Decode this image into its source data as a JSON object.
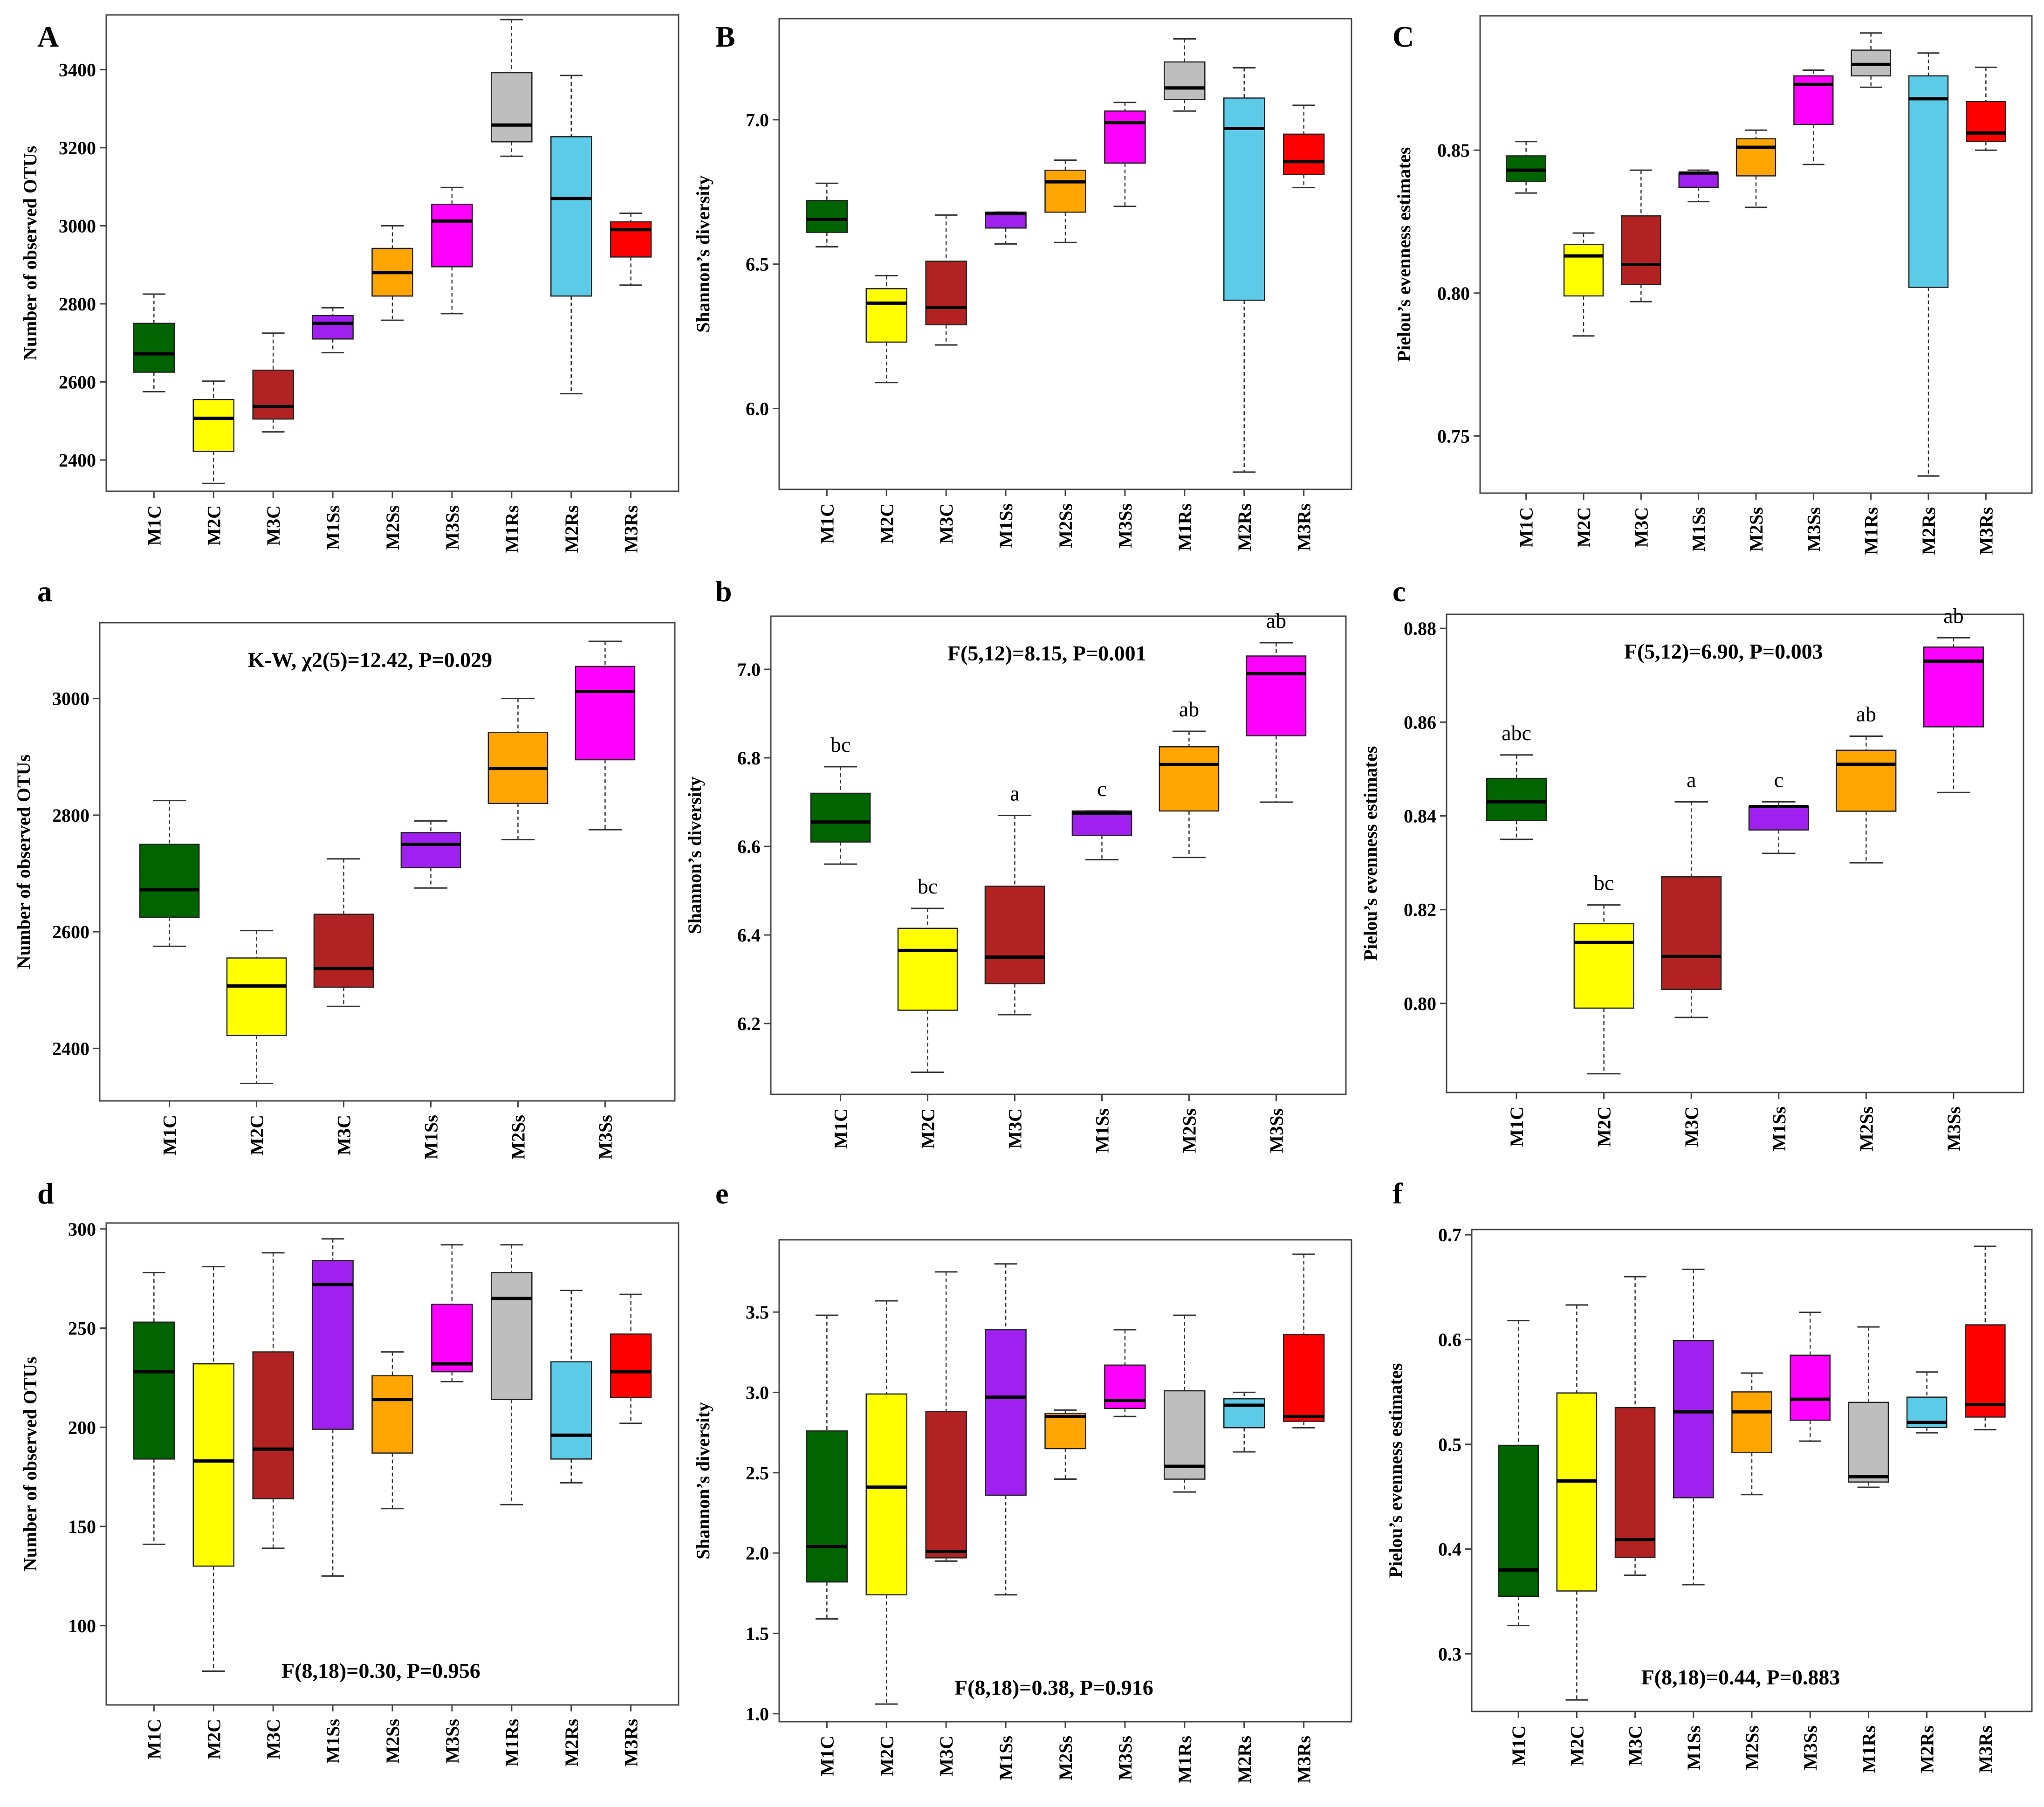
{
  "colors": {
    "M1C": "#006400",
    "M2C": "#ffff00",
    "M3C": "#b22222",
    "M1Ss": "#a020f0",
    "M2Ss": "#ffa500",
    "M3Ss": "#ff00ff",
    "M1Rs": "#bebebe",
    "M2Rs": "#5bcbe8",
    "M3Rs": "#ff0000"
  },
  "chart_data": [
    {
      "id": "A",
      "type": "boxplot",
      "panel_label": "A",
      "ylabel": "Number of observed OTUs",
      "annotation": "",
      "ylim": [
        2320,
        3540
      ],
      "yticks": [
        "2400",
        "2600",
        "2800",
        "3000",
        "3200",
        "3400"
      ],
      "categories": [
        "M1C",
        "M2C",
        "M3C",
        "M1Ss",
        "M2Ss",
        "M3Ss",
        "M1Rs",
        "M2Rs",
        "M3Rs"
      ],
      "boxes": [
        {
          "min": 2575,
          "q1": 2625,
          "median": 2672,
          "q3": 2750,
          "max": 2825
        },
        {
          "min": 2340,
          "q1": 2422,
          "median": 2507,
          "q3": 2555,
          "max": 2602
        },
        {
          "min": 2472,
          "q1": 2505,
          "median": 2537,
          "q3": 2630,
          "max": 2725
        },
        {
          "min": 2675,
          "q1": 2710,
          "median": 2750,
          "q3": 2770,
          "max": 2790
        },
        {
          "min": 2758,
          "q1": 2820,
          "median": 2880,
          "q3": 2942,
          "max": 3000
        },
        {
          "min": 2775,
          "q1": 2895,
          "median": 3012,
          "q3": 3055,
          "max": 3098
        },
        {
          "min": 3178,
          "q1": 3215,
          "median": 3258,
          "q3": 3392,
          "max": 3528
        },
        {
          "min": 2570,
          "q1": 2820,
          "median": 3070,
          "q3": 3228,
          "max": 3385
        },
        {
          "min": 2848,
          "q1": 2920,
          "median": 2990,
          "q3": 3010,
          "max": 3032
        }
      ],
      "sig_letters": []
    },
    {
      "id": "B",
      "type": "boxplot",
      "panel_label": "B",
      "ylabel": "Shannon’s diversity",
      "annotation": "",
      "ylim": [
        5.72,
        7.35
      ],
      "yticks": [
        "6.0",
        "6.5",
        "7.0"
      ],
      "categories": [
        "M1C",
        "M2C",
        "M3C",
        "M1Ss",
        "M2Ss",
        "M3Ss",
        "M1Rs",
        "M2Rs",
        "M3Rs"
      ],
      "boxes": [
        {
          "min": 6.56,
          "q1": 6.61,
          "median": 6.655,
          "q3": 6.72,
          "max": 6.78
        },
        {
          "min": 6.09,
          "q1": 6.23,
          "median": 6.365,
          "q3": 6.415,
          "max": 6.46
        },
        {
          "min": 6.22,
          "q1": 6.29,
          "median": 6.35,
          "q3": 6.51,
          "max": 6.67
        },
        {
          "min": 6.57,
          "q1": 6.625,
          "median": 6.675,
          "q3": 6.68,
          "max": 6.68
        },
        {
          "min": 6.575,
          "q1": 6.68,
          "median": 6.785,
          "q3": 6.825,
          "max": 6.86
        },
        {
          "min": 6.7,
          "q1": 6.85,
          "median": 6.99,
          "q3": 7.03,
          "max": 7.06
        },
        {
          "min": 7.03,
          "q1": 7.07,
          "median": 7.11,
          "q3": 7.2,
          "max": 7.28
        },
        {
          "min": 5.78,
          "q1": 6.375,
          "median": 6.97,
          "q3": 7.075,
          "max": 7.18
        },
        {
          "min": 6.765,
          "q1": 6.81,
          "median": 6.855,
          "q3": 6.95,
          "max": 7.05
        }
      ],
      "sig_letters": []
    },
    {
      "id": "C",
      "type": "boxplot",
      "panel_label": "C",
      "ylabel": "Pielou’s evenness estimates",
      "annotation": "",
      "ylim": [
        0.73,
        0.897
      ],
      "yticks": [
        "0.75",
        "0.80",
        "0.85"
      ],
      "categories": [
        "M1C",
        "M2C",
        "M3C",
        "M1Ss",
        "M2Ss",
        "M3Ss",
        "M1Rs",
        "M2Rs",
        "M3Rs"
      ],
      "boxes": [
        {
          "min": 0.835,
          "q1": 0.839,
          "median": 0.843,
          "q3": 0.848,
          "max": 0.853
        },
        {
          "min": 0.785,
          "q1": 0.799,
          "median": 0.813,
          "q3": 0.817,
          "max": 0.821
        },
        {
          "min": 0.797,
          "q1": 0.803,
          "median": 0.81,
          "q3": 0.827,
          "max": 0.843
        },
        {
          "min": 0.832,
          "q1": 0.837,
          "median": 0.842,
          "q3": 0.842,
          "max": 0.843
        },
        {
          "min": 0.83,
          "q1": 0.841,
          "median": 0.851,
          "q3": 0.854,
          "max": 0.857
        },
        {
          "min": 0.845,
          "q1": 0.859,
          "median": 0.873,
          "q3": 0.876,
          "max": 0.878
        },
        {
          "min": 0.872,
          "q1": 0.876,
          "median": 0.88,
          "q3": 0.885,
          "max": 0.891
        },
        {
          "min": 0.736,
          "q1": 0.802,
          "median": 0.868,
          "q3": 0.876,
          "max": 0.884
        },
        {
          "min": 0.85,
          "q1": 0.853,
          "median": 0.856,
          "q3": 0.867,
          "max": 0.879
        }
      ],
      "sig_letters": []
    },
    {
      "id": "a",
      "type": "boxplot",
      "panel_label": "a",
      "ylabel": "Number of observed OTUs",
      "annotation": "K-W, χ2(5)=12.42, P=0.029",
      "ylim": [
        2310,
        3130
      ],
      "yticks": [
        "2400",
        "2600",
        "2800",
        "3000"
      ],
      "categories": [
        "M1C",
        "M2C",
        "M3C",
        "M1Ss",
        "M2Ss",
        "M3Ss"
      ],
      "boxes": [
        {
          "min": 2575,
          "q1": 2625,
          "median": 2672,
          "q3": 2750,
          "max": 2825
        },
        {
          "min": 2340,
          "q1": 2422,
          "median": 2507,
          "q3": 2555,
          "max": 2602
        },
        {
          "min": 2472,
          "q1": 2505,
          "median": 2537,
          "q3": 2630,
          "max": 2725
        },
        {
          "min": 2675,
          "q1": 2710,
          "median": 2750,
          "q3": 2770,
          "max": 2790
        },
        {
          "min": 2758,
          "q1": 2820,
          "median": 2880,
          "q3": 2942,
          "max": 3000
        },
        {
          "min": 2775,
          "q1": 2895,
          "median": 3012,
          "q3": 3055,
          "max": 3098
        }
      ],
      "sig_letters": []
    },
    {
      "id": "b",
      "type": "boxplot",
      "panel_label": "b",
      "ylabel": "Shannon’s diversity",
      "annotation": "F(5,12)=8.15, P=0.001",
      "ylim": [
        6.04,
        7.12
      ],
      "yticks": [
        "6.2",
        "6.4",
        "6.6",
        "6.8",
        "7.0"
      ],
      "categories": [
        "M1C",
        "M2C",
        "M3C",
        "M1Ss",
        "M2Ss",
        "M3Ss"
      ],
      "boxes": [
        {
          "min": 6.56,
          "q1": 6.61,
          "median": 6.655,
          "q3": 6.72,
          "max": 6.78
        },
        {
          "min": 6.09,
          "q1": 6.23,
          "median": 6.365,
          "q3": 6.415,
          "max": 6.46
        },
        {
          "min": 6.22,
          "q1": 6.29,
          "median": 6.35,
          "q3": 6.51,
          "max": 6.67
        },
        {
          "min": 6.57,
          "q1": 6.625,
          "median": 6.675,
          "q3": 6.68,
          "max": 6.68
        },
        {
          "min": 6.575,
          "q1": 6.68,
          "median": 6.785,
          "q3": 6.825,
          "max": 6.86
        },
        {
          "min": 6.7,
          "q1": 6.85,
          "median": 6.99,
          "q3": 7.03,
          "max": 7.06
        }
      ],
      "sig_letters": [
        "bc",
        "bc",
        "a",
        "c",
        "ab",
        "ab"
      ]
    },
    {
      "id": "c",
      "type": "boxplot",
      "panel_label": "c",
      "ylabel": "Pielou’s evenness estimates",
      "annotation": "F(5,12)=6.90, P=0.003",
      "ylim": [
        0.781,
        0.883
      ],
      "yticks": [
        "0.80",
        "0.82",
        "0.84",
        "0.86",
        "0.88"
      ],
      "categories": [
        "M1C",
        "M2C",
        "M3C",
        "M1Ss",
        "M2Ss",
        "M3Ss"
      ],
      "boxes": [
        {
          "min": 0.835,
          "q1": 0.839,
          "median": 0.843,
          "q3": 0.848,
          "max": 0.853
        },
        {
          "min": 0.785,
          "q1": 0.799,
          "median": 0.813,
          "q3": 0.817,
          "max": 0.821
        },
        {
          "min": 0.797,
          "q1": 0.803,
          "median": 0.81,
          "q3": 0.827,
          "max": 0.843
        },
        {
          "min": 0.832,
          "q1": 0.837,
          "median": 0.842,
          "q3": 0.842,
          "max": 0.843
        },
        {
          "min": 0.83,
          "q1": 0.841,
          "median": 0.851,
          "q3": 0.854,
          "max": 0.857
        },
        {
          "min": 0.845,
          "q1": 0.859,
          "median": 0.873,
          "q3": 0.876,
          "max": 0.878
        }
      ],
      "sig_letters": [
        "abc",
        "bc",
        "a",
        "c",
        "ab",
        "ab"
      ]
    },
    {
      "id": "d",
      "type": "boxplot",
      "panel_label": "d",
      "ylabel": "Number of observed OTUs",
      "annotation": "F(8,18)=0.30, P=0.956",
      "ylim": [
        60,
        303
      ],
      "yticks": [
        "100",
        "150",
        "200",
        "250",
        "300"
      ],
      "categories": [
        "M1C",
        "M2C",
        "M3C",
        "M1Ss",
        "M2Ss",
        "M3Ss",
        "M1Rs",
        "M2Rs",
        "M3Rs"
      ],
      "boxes": [
        {
          "min": 141,
          "q1": 184,
          "median": 228,
          "q3": 253,
          "max": 278
        },
        {
          "min": 77,
          "q1": 130,
          "median": 183,
          "q3": 232,
          "max": 281
        },
        {
          "min": 139,
          "q1": 164,
          "median": 189,
          "q3": 238,
          "max": 288
        },
        {
          "min": 125,
          "q1": 199,
          "median": 272,
          "q3": 284,
          "max": 295
        },
        {
          "min": 159,
          "q1": 187,
          "median": 214,
          "q3": 226,
          "max": 238
        },
        {
          "min": 223,
          "q1": 228,
          "median": 232,
          "q3": 262,
          "max": 292
        },
        {
          "min": 161,
          "q1": 214,
          "median": 265,
          "q3": 278,
          "max": 292
        },
        {
          "min": 172,
          "q1": 184,
          "median": 196,
          "q3": 233,
          "max": 269
        },
        {
          "min": 202,
          "q1": 215,
          "median": 228,
          "q3": 247,
          "max": 267
        }
      ],
      "sig_letters": []
    },
    {
      "id": "e",
      "type": "boxplot",
      "panel_label": "e",
      "ylabel": "Shannon’s diversity",
      "annotation": "F(8,18)=0.38, P=0.916",
      "ylim": [
        0.95,
        3.95
      ],
      "yticks": [
        "1.0",
        "1.5",
        "2.0",
        "2.5",
        "3.0",
        "3.5"
      ],
      "categories": [
        "M1C",
        "M2C",
        "M3C",
        "M1Ss",
        "M2Ss",
        "M3Ss",
        "M1Rs",
        "M2Rs",
        "M3Rs"
      ],
      "boxes": [
        {
          "min": 1.59,
          "q1": 1.82,
          "median": 2.04,
          "q3": 2.76,
          "max": 3.48
        },
        {
          "min": 1.06,
          "q1": 1.74,
          "median": 2.41,
          "q3": 2.99,
          "max": 3.57
        },
        {
          "min": 1.95,
          "q1": 1.97,
          "median": 2.01,
          "q3": 2.88,
          "max": 3.75
        },
        {
          "min": 1.74,
          "q1": 2.36,
          "median": 2.97,
          "q3": 3.39,
          "max": 3.8
        },
        {
          "min": 2.46,
          "q1": 2.65,
          "median": 2.85,
          "q3": 2.87,
          "max": 2.89
        },
        {
          "min": 2.85,
          "q1": 2.9,
          "median": 2.95,
          "q3": 3.17,
          "max": 3.39
        },
        {
          "min": 2.38,
          "q1": 2.46,
          "median": 2.54,
          "q3": 3.01,
          "max": 3.48
        },
        {
          "min": 2.63,
          "q1": 2.78,
          "median": 2.92,
          "q3": 2.96,
          "max": 3.0
        },
        {
          "min": 2.78,
          "q1": 2.82,
          "median": 2.85,
          "q3": 3.36,
          "max": 3.86
        }
      ],
      "sig_letters": []
    },
    {
      "id": "f",
      "type": "boxplot",
      "panel_label": "f",
      "ylabel": "Pielou’s evenness estimates",
      "annotation": "F(8,18)=0.44, P=0.883",
      "ylim": [
        0.245,
        0.705
      ],
      "yticks": [
        "0.3",
        "0.4",
        "0.5",
        "0.6",
        "0.7"
      ],
      "categories": [
        "M1C",
        "M2C",
        "M3C",
        "M1Ss",
        "M2Ss",
        "M3Ss",
        "M1Rs",
        "M2Rs",
        "M3Rs"
      ],
      "boxes": [
        {
          "min": 0.327,
          "q1": 0.355,
          "median": 0.38,
          "q3": 0.499,
          "max": 0.618
        },
        {
          "min": 0.256,
          "q1": 0.36,
          "median": 0.465,
          "q3": 0.549,
          "max": 0.633
        },
        {
          "min": 0.375,
          "q1": 0.392,
          "median": 0.409,
          "q3": 0.535,
          "max": 0.66
        },
        {
          "min": 0.366,
          "q1": 0.449,
          "median": 0.531,
          "q3": 0.599,
          "max": 0.667
        },
        {
          "min": 0.452,
          "q1": 0.492,
          "median": 0.531,
          "q3": 0.55,
          "max": 0.568
        },
        {
          "min": 0.503,
          "q1": 0.523,
          "median": 0.543,
          "q3": 0.585,
          "max": 0.626
        },
        {
          "min": 0.459,
          "q1": 0.464,
          "median": 0.469,
          "q3": 0.54,
          "max": 0.612
        },
        {
          "min": 0.511,
          "q1": 0.516,
          "median": 0.521,
          "q3": 0.545,
          "max": 0.569
        },
        {
          "min": 0.514,
          "q1": 0.526,
          "median": 0.538,
          "q3": 0.614,
          "max": 0.689
        }
      ],
      "sig_letters": []
    }
  ]
}
